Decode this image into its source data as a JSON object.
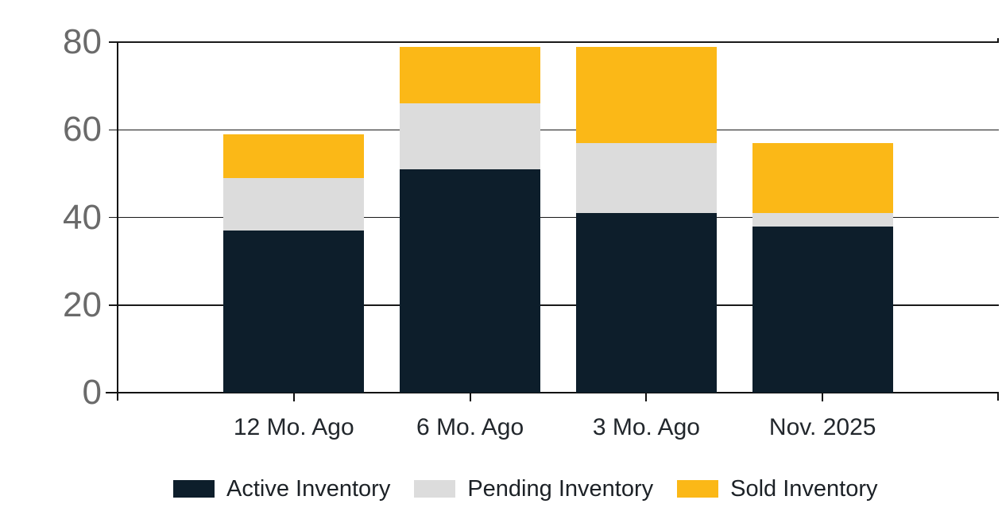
{
  "chart_data": {
    "type": "bar",
    "stacked": true,
    "title": "",
    "xlabel": "",
    "ylabel": "",
    "categories": [
      "12 Mo. Ago",
      "6 Mo. Ago",
      "3 Mo. Ago",
      "Nov. 2025"
    ],
    "series": [
      {
        "name": "Active Inventory",
        "color": "#0d1e2b",
        "values": [
          37,
          51,
          41,
          38
        ]
      },
      {
        "name": "Pending Inventory",
        "color": "#dcdcdc",
        "values": [
          12,
          15,
          16,
          3
        ]
      },
      {
        "name": "Sold Inventory",
        "color": "#fbb817",
        "values": [
          10,
          13,
          22,
          16
        ]
      }
    ],
    "totals": [
      59,
      79,
      79,
      57
    ],
    "ylim": [
      0,
      80
    ],
    "yticks": [
      0,
      20,
      40,
      60,
      80
    ],
    "grid": true,
    "legend_position": "bottom"
  },
  "colors": {
    "background": "#ffffff",
    "gridline": "#191919",
    "axis": "#111111",
    "ytick_text": "#6a6a6a",
    "xtick_text": "#22272c",
    "legend_text": "#1c2126",
    "active": "#0d1e2b",
    "pending": "#dcdcdc",
    "sold": "#fbb817"
  }
}
